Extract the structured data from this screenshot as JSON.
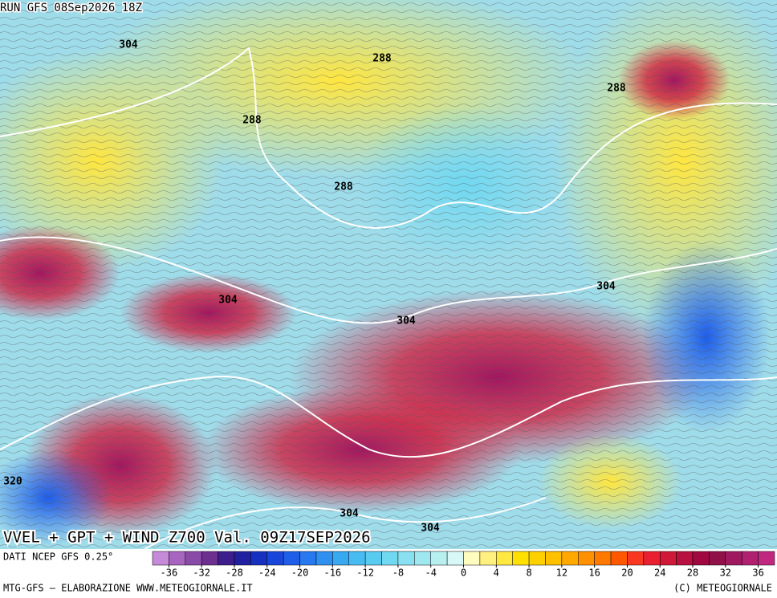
{
  "header": {
    "run": "RUN GFS 08Sep2026 18Z"
  },
  "contour_labels": [
    "304",
    "288",
    "288",
    "288",
    "288",
    "304",
    "304",
    "304",
    "320",
    "304",
    "304"
  ],
  "title": "VVEL + GPT + WIND Z700 Val. 09Z17SEP2026",
  "legend": {
    "source": "DATI NCEP GFS 0.25°",
    "range": [
      -38,
      38
    ],
    "ticks": [
      -36,
      -32,
      -28,
      -24,
      -20,
      -16,
      -12,
      -8,
      -4,
      0,
      4,
      8,
      12,
      16,
      20,
      24,
      28,
      32,
      36
    ],
    "colors": [
      "#c58bd8",
      "#a765c0",
      "#8a4aa8",
      "#6e3090",
      "#3c1e8c",
      "#2020a0",
      "#1830c0",
      "#1846d8",
      "#1e5ee8",
      "#2878f0",
      "#3090f0",
      "#38a8f0",
      "#48bcf0",
      "#58ccf0",
      "#70d8f0",
      "#88e0f0",
      "#a0e8f0",
      "#b8f0f0",
      "#d8f8f8",
      "#fffcc0",
      "#fff080",
      "#ffe840",
      "#ffe000",
      "#ffd000",
      "#ffc000",
      "#ffa800",
      "#ff9000",
      "#ff7800",
      "#ff5800",
      "#f83820",
      "#e82030",
      "#d01838",
      "#b81040",
      "#a00840",
      "#901048",
      "#a01860",
      "#b02070",
      "#c02880"
    ]
  },
  "footer": {
    "left": "MTG-GFS — ELABORAZIONE WWW.METEOGIORNALE.IT",
    "right": "(C) METEOGIORNALE"
  }
}
